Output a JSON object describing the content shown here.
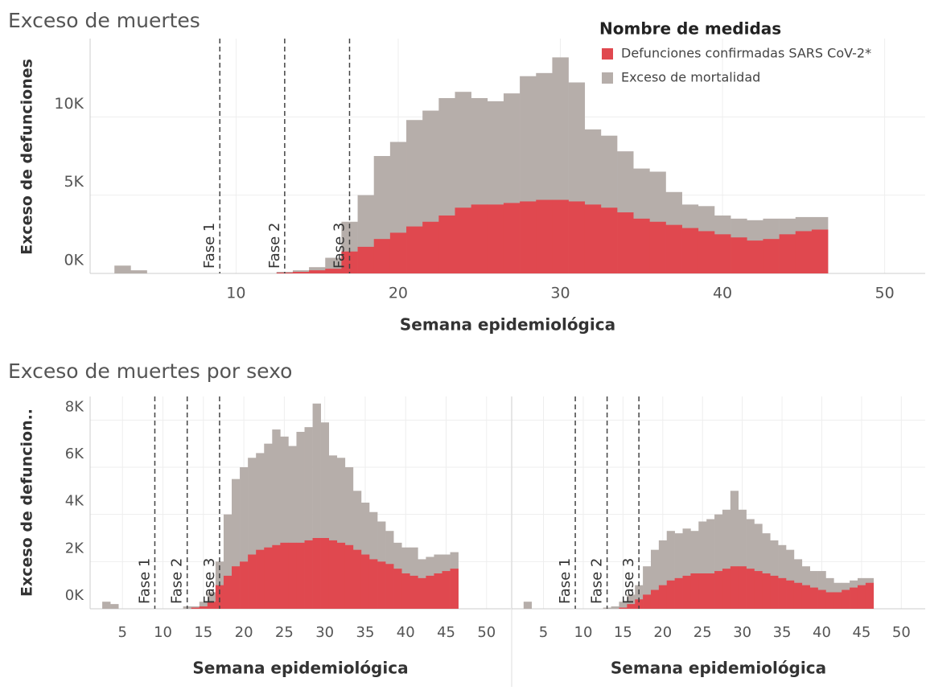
{
  "chart_data": [
    {
      "type": "bar",
      "title": "Exceso de muertes",
      "xlabel": "Semana epidemiológica",
      "ylabel": "Exceso de defunciones",
      "legend_title": "Nombre de medidas",
      "xlim": [
        1,
        52.5
      ],
      "xticks": [
        10,
        20,
        30,
        40,
        50
      ],
      "ylim": [
        0,
        15000
      ],
      "yticks": [
        {
          "value": 0,
          "label": "0K"
        },
        {
          "value": 5000,
          "label": "5K"
        },
        {
          "value": 10000,
          "label": "10K"
        }
      ],
      "grid": true,
      "annotations": [
        {
          "x": 9,
          "label": "Fase 1"
        },
        {
          "x": 13,
          "label": "Fase 2"
        },
        {
          "x": 17,
          "label": "Fase 3"
        }
      ],
      "x": [
        3,
        4,
        5,
        6,
        7,
        8,
        9,
        10,
        11,
        12,
        13,
        14,
        15,
        16,
        17,
        18,
        19,
        20,
        21,
        22,
        23,
        24,
        25,
        26,
        27,
        28,
        29,
        30,
        31,
        32,
        33,
        34,
        35,
        36,
        37,
        38,
        39,
        40,
        41,
        42,
        43,
        44,
        45,
        46
      ],
      "series": [
        {
          "name": "Defunciones confirmadas SARS CoV-2*",
          "color": "#e0484f",
          "values": [
            null,
            null,
            null,
            null,
            null,
            null,
            null,
            null,
            null,
            null,
            50,
            100,
            200,
            300,
            1400,
            1700,
            2200,
            2600,
            3000,
            3300,
            3700,
            4200,
            4400,
            4400,
            4500,
            4600,
            4700,
            4700,
            4600,
            4400,
            4200,
            3900,
            3500,
            3300,
            3100,
            2900,
            2700,
            2500,
            2300,
            2100,
            2200,
            2500,
            2700,
            2800
          ]
        },
        {
          "name": "Exceso de mortalidad",
          "color": "#b6aeaa",
          "values": [
            500,
            200,
            null,
            null,
            null,
            null,
            null,
            null,
            null,
            null,
            100,
            200,
            400,
            1000,
            3300,
            5000,
            7500,
            8400,
            9800,
            10400,
            11200,
            11600,
            11200,
            11000,
            11500,
            12600,
            12800,
            13800,
            12200,
            9200,
            8800,
            7800,
            6700,
            6500,
            5200,
            4400,
            4300,
            3700,
            3500,
            3400,
            3500,
            3500,
            3600,
            3600
          ]
        }
      ]
    },
    {
      "type": "bar",
      "title": "Exceso de muertes por sexo",
      "xlabel": "Semana epidemiológica",
      "ylabel": "Exceso de defuncion..",
      "xlim": [
        1,
        53
      ],
      "xticks": [
        5,
        10,
        15,
        20,
        25,
        30,
        35,
        40,
        45,
        50
      ],
      "ylim": [
        0,
        9000
      ],
      "yticks": [
        {
          "value": 0,
          "label": "0K"
        },
        {
          "value": 2000,
          "label": "2K"
        },
        {
          "value": 4000,
          "label": "4K"
        },
        {
          "value": 6000,
          "label": "6K"
        },
        {
          "value": 8000,
          "label": "8K"
        }
      ],
      "grid": true,
      "annotations": [
        {
          "x": 9,
          "label": "Fase 1"
        },
        {
          "x": 13,
          "label": "Fase 2"
        },
        {
          "x": 17,
          "label": "Fase 3"
        }
      ],
      "x": [
        3,
        4,
        5,
        6,
        7,
        8,
        9,
        10,
        11,
        12,
        13,
        14,
        15,
        16,
        17,
        18,
        19,
        20,
        21,
        22,
        23,
        24,
        25,
        26,
        27,
        28,
        29,
        30,
        31,
        32,
        33,
        34,
        35,
        36,
        37,
        38,
        39,
        40,
        41,
        42,
        43,
        44,
        45,
        46
      ],
      "series": [
        {
          "color": "#e0484f",
          "values": [
            null,
            null,
            null,
            null,
            null,
            null,
            null,
            null,
            null,
            null,
            null,
            50,
            100,
            300,
            1000,
            1400,
            1800,
            2000,
            2300,
            2500,
            2600,
            2700,
            2800,
            2800,
            2800,
            2900,
            3000,
            3000,
            2900,
            2800,
            2700,
            2500,
            2300,
            2100,
            2000,
            1900,
            1700,
            1500,
            1400,
            1300,
            1400,
            1500,
            1600,
            1700
          ]
        },
        {
          "color": "#b6aeaa",
          "values": [
            300,
            200,
            null,
            null,
            null,
            null,
            null,
            null,
            null,
            null,
            100,
            100,
            300,
            700,
            2000,
            4000,
            5500,
            6000,
            6400,
            6600,
            7000,
            7600,
            7300,
            6900,
            7500,
            7700,
            8700,
            7900,
            6500,
            6400,
            6000,
            5000,
            4500,
            4100,
            3700,
            3300,
            2800,
            2600,
            2600,
            2100,
            2200,
            2300,
            2300,
            2400
          ]
        }
      ]
    },
    {
      "type": "bar",
      "xlabel": "Semana epidemiológica",
      "xlim": [
        1,
        53
      ],
      "xticks": [
        5,
        10,
        15,
        20,
        25,
        30,
        35,
        40,
        45,
        50
      ],
      "ylim": [
        0,
        9000
      ],
      "grid": true,
      "annotations": [
        {
          "x": 9,
          "label": "Fase 1"
        },
        {
          "x": 13,
          "label": "Fase 2"
        },
        {
          "x": 17,
          "label": "Fase 3"
        }
      ],
      "x": [
        3,
        4,
        5,
        6,
        7,
        8,
        9,
        10,
        11,
        12,
        13,
        14,
        15,
        16,
        17,
        18,
        19,
        20,
        21,
        22,
        23,
        24,
        25,
        26,
        27,
        28,
        29,
        30,
        31,
        32,
        33,
        34,
        35,
        36,
        37,
        38,
        39,
        40,
        41,
        42,
        43,
        44,
        45,
        46
      ],
      "series": [
        {
          "color": "#e0484f",
          "values": [
            null,
            null,
            null,
            null,
            null,
            null,
            null,
            null,
            null,
            null,
            null,
            null,
            50,
            200,
            400,
            600,
            800,
            1000,
            1200,
            1300,
            1400,
            1500,
            1500,
            1500,
            1600,
            1700,
            1800,
            1800,
            1700,
            1600,
            1500,
            1400,
            1300,
            1200,
            1100,
            1000,
            900,
            800,
            700,
            700,
            800,
            900,
            1000,
            1100
          ]
        },
        {
          "color": "#b6aeaa",
          "values": [
            300,
            null,
            null,
            null,
            null,
            null,
            null,
            null,
            null,
            null,
            50,
            100,
            300,
            600,
            1000,
            1800,
            2500,
            2900,
            3300,
            3200,
            3400,
            3300,
            3700,
            3800,
            4000,
            4200,
            5000,
            4200,
            3800,
            3600,
            3200,
            2900,
            2700,
            2500,
            2100,
            1800,
            1600,
            1600,
            1300,
            1100,
            1100,
            1200,
            1300,
            1300
          ]
        }
      ]
    }
  ]
}
